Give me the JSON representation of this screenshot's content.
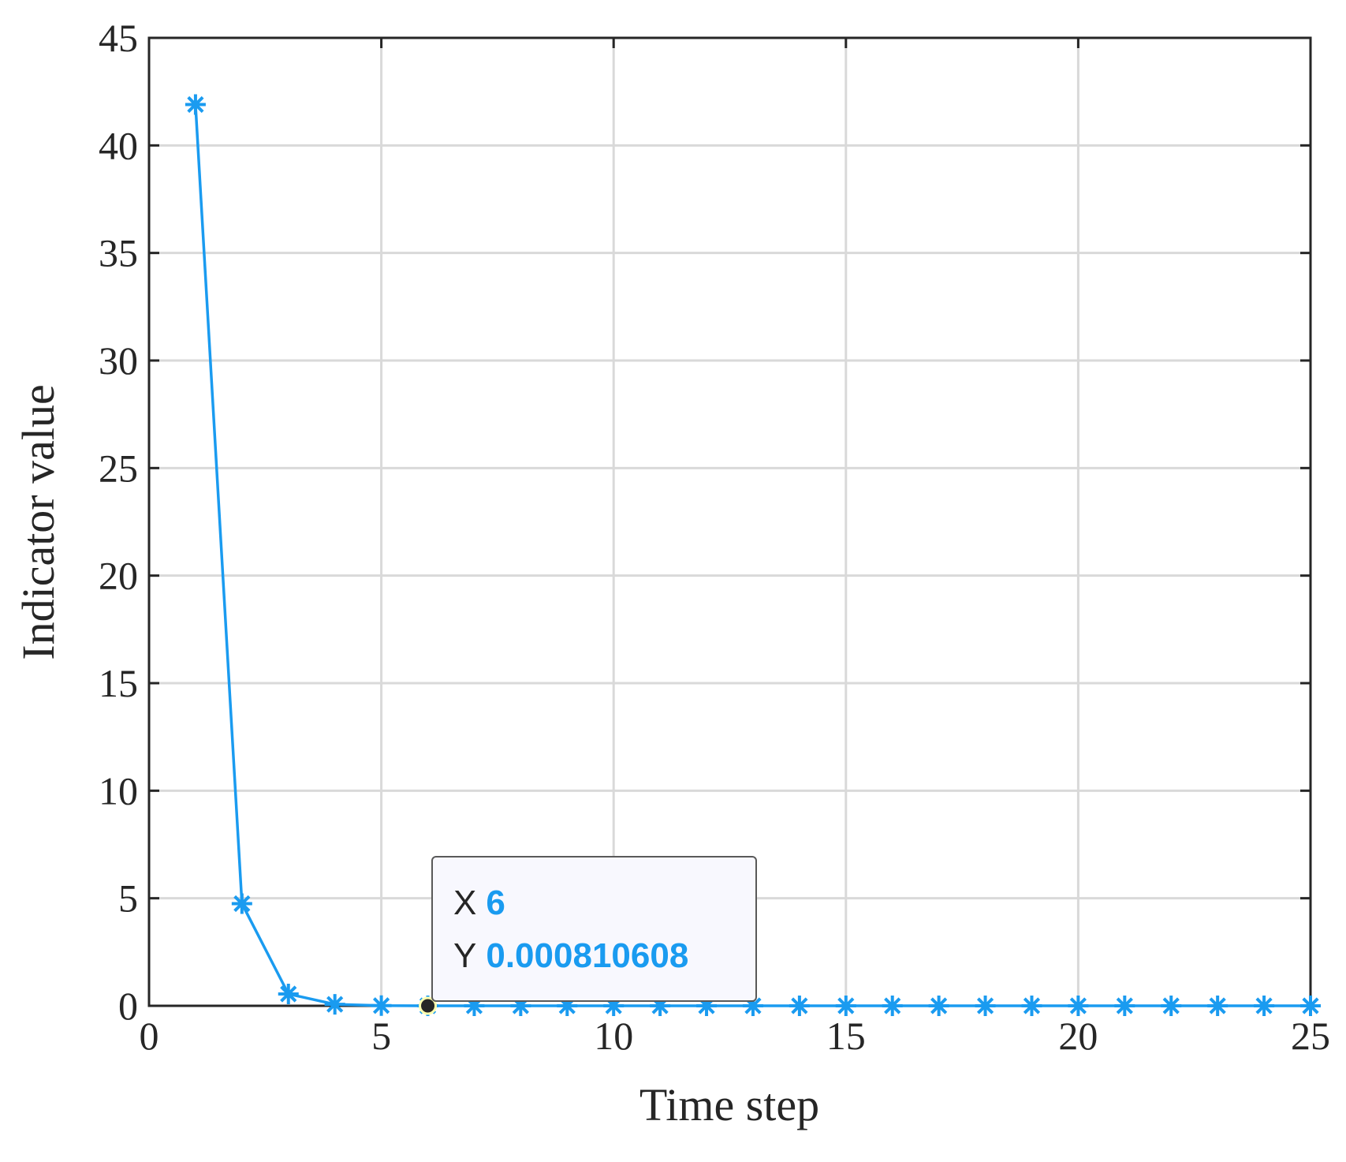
{
  "chart_data": {
    "type": "line",
    "x_label": "Time step",
    "y_label": "Indicator value",
    "x": [
      1,
      2,
      3,
      4,
      5,
      6,
      7,
      8,
      9,
      10,
      11,
      12,
      13,
      14,
      15,
      16,
      17,
      18,
      19,
      20,
      21,
      22,
      23,
      24,
      25
    ],
    "values": [
      41.9,
      4.75,
      0.55,
      0.07,
      0.008,
      0.000810608,
      0.0001,
      0.0001,
      0.0001,
      0.0001,
      0.0001,
      0.0001,
      0.0001,
      0.0001,
      0.0001,
      0.0001,
      0.0001,
      0.0001,
      0.0001,
      0.0001,
      0.0001,
      0.0001,
      0.0001,
      0.0001,
      0.0001
    ],
    "color": "#1a9bf0",
    "marker": "asterisk",
    "xlim": [
      0,
      25
    ],
    "xticks": [
      0,
      5,
      10,
      15,
      20,
      25
    ],
    "ylim": [
      0,
      45
    ],
    "yticks": [
      0,
      5,
      10,
      15,
      20,
      25,
      30,
      35,
      40,
      45
    ],
    "grid": true,
    "datatip": {
      "x_label": "X",
      "y_label": "Y",
      "x": 6,
      "y": 0.000810608
    }
  }
}
